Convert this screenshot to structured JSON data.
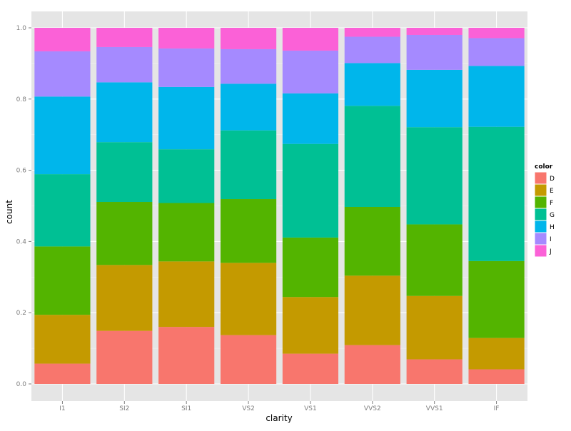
{
  "chart_data": {
    "type": "bar",
    "stacked": "fill",
    "title": "",
    "xlabel": "clarity",
    "ylabel": "count",
    "ylim": [
      0,
      1
    ],
    "yticks": [
      0.0,
      0.2,
      0.4,
      0.6,
      0.8,
      1.0
    ],
    "ytick_labels": [
      "0.0",
      "0.2",
      "0.4",
      "0.6",
      "0.8",
      "1.0"
    ],
    "grid": true,
    "legend_position": "right",
    "legend_title": "color",
    "categories": [
      "I1",
      "SI2",
      "SI1",
      "VS2",
      "VS1",
      "VVS2",
      "VVS1",
      "IF"
    ],
    "series": [
      {
        "name": "D",
        "color": "#F8766D",
        "values": [
          0.057,
          0.149,
          0.16,
          0.137,
          0.085,
          0.109,
          0.069,
          0.041
        ]
      },
      {
        "name": "E",
        "color": "#C49A00",
        "values": [
          0.137,
          0.185,
          0.184,
          0.203,
          0.159,
          0.195,
          0.178,
          0.088
        ]
      },
      {
        "name": "F",
        "color": "#53B400",
        "values": [
          0.192,
          0.177,
          0.164,
          0.179,
          0.167,
          0.193,
          0.201,
          0.216
        ]
      },
      {
        "name": "G",
        "color": "#00C094",
        "values": [
          0.203,
          0.168,
          0.151,
          0.193,
          0.263,
          0.284,
          0.273,
          0.377
        ]
      },
      {
        "name": "H",
        "color": "#00B6EB",
        "values": [
          0.218,
          0.168,
          0.175,
          0.131,
          0.142,
          0.12,
          0.161,
          0.171
        ]
      },
      {
        "name": "I",
        "color": "#A58AFF",
        "values": [
          0.127,
          0.099,
          0.108,
          0.097,
          0.12,
          0.074,
          0.098,
          0.078
        ]
      },
      {
        "name": "J",
        "color": "#FB61D7",
        "values": [
          0.066,
          0.054,
          0.058,
          0.06,
          0.064,
          0.025,
          0.02,
          0.029
        ]
      }
    ]
  }
}
